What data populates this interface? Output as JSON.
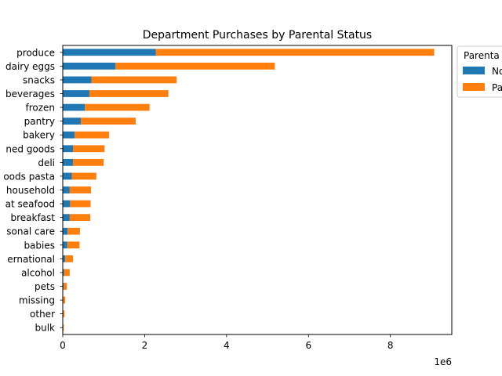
{
  "chart_data": {
    "type": "bar",
    "orientation": "horizontal",
    "stacked": true,
    "title": "Department Purchases by Parental Status",
    "xlabel": "",
    "ylabel": "",
    "xlim": [
      0,
      9500000
    ],
    "x_ticks": [
      0,
      2,
      4,
      6,
      8
    ],
    "x_offset_text": "1e6",
    "categories": [
      "produce",
      "dairy eggs",
      "snacks",
      "beverages",
      "frozen",
      "pantry",
      "bakery",
      "canned goods",
      "deli",
      "dry goods pasta",
      "household",
      "meat seafood",
      "breakfast",
      "personal care",
      "babies",
      "international",
      "alcohol",
      "pets",
      "missing",
      "other",
      "bulk"
    ],
    "category_labels_shown": [
      "produce",
      "dairy eggs",
      "snacks",
      "beverages",
      "frozen",
      "pantry",
      "bakery",
      "ned goods",
      "deli",
      "oods pasta",
      "household",
      "at seafood",
      "breakfast",
      "sonal care",
      "babies",
      "ernational",
      "alcohol",
      "pets",
      "missing",
      "other",
      "bulk"
    ],
    "series": [
      {
        "name": "No",
        "color": "#1f77b4",
        "values": [
          2270000,
          1290000,
          700000,
          650000,
          540000,
          440000,
          290000,
          250000,
          250000,
          220000,
          170000,
          180000,
          170000,
          120000,
          110000,
          60000,
          30000,
          20000,
          10000,
          8000,
          5000
        ]
      },
      {
        "name": "Pa",
        "color": "#ff7f0e",
        "values": [
          6800000,
          3890000,
          2080000,
          1930000,
          1580000,
          1340000,
          840000,
          770000,
          750000,
          600000,
          520000,
          500000,
          500000,
          300000,
          300000,
          190000,
          140000,
          80000,
          50000,
          35000,
          20000
        ]
      }
    ],
    "legend": {
      "title": "Parenta",
      "position": "outside-top-right"
    },
    "grid": false
  }
}
